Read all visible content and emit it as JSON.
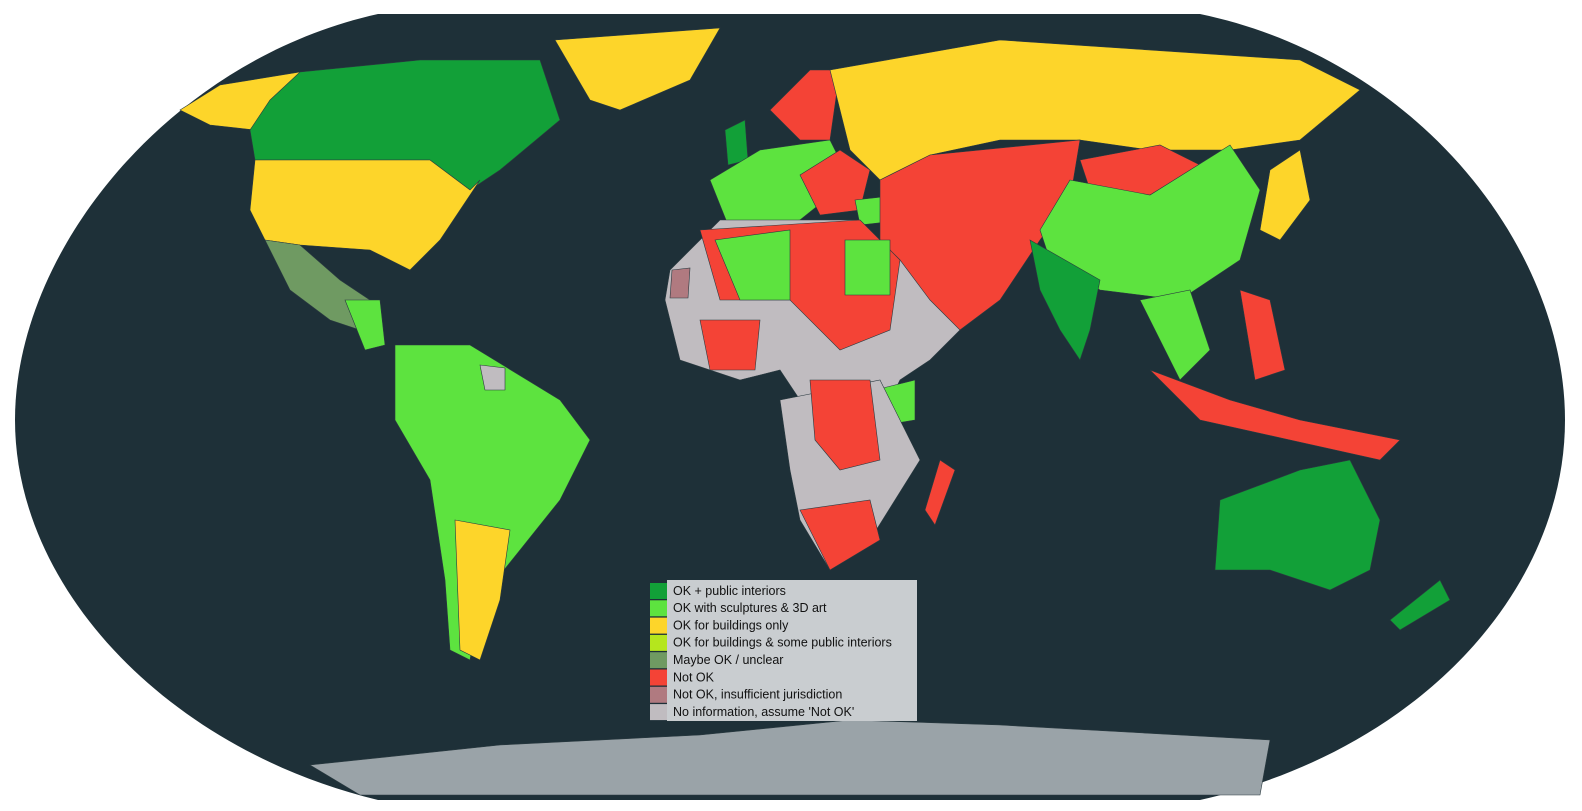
{
  "legend": {
    "items": [
      {
        "label": "OK + public interiors",
        "color": "#12a038"
      },
      {
        "label": "OK with sculptures & 3D art",
        "color": "#5de33f"
      },
      {
        "label": "OK for buildings only",
        "color": "#fdd52a"
      },
      {
        "label": "OK for buildings & some public interiors",
        "color": "#b5e61d"
      },
      {
        "label": "Maybe OK / unclear",
        "color": "#6f9a62"
      },
      {
        "label": "Not OK",
        "color": "#f44336"
      },
      {
        "label": "Not OK, insufficient jurisdiction",
        "color": "#b07a80"
      },
      {
        "label": "No information, assume 'Not OK'",
        "color": "#c0bcc0"
      }
    ]
  }
}
